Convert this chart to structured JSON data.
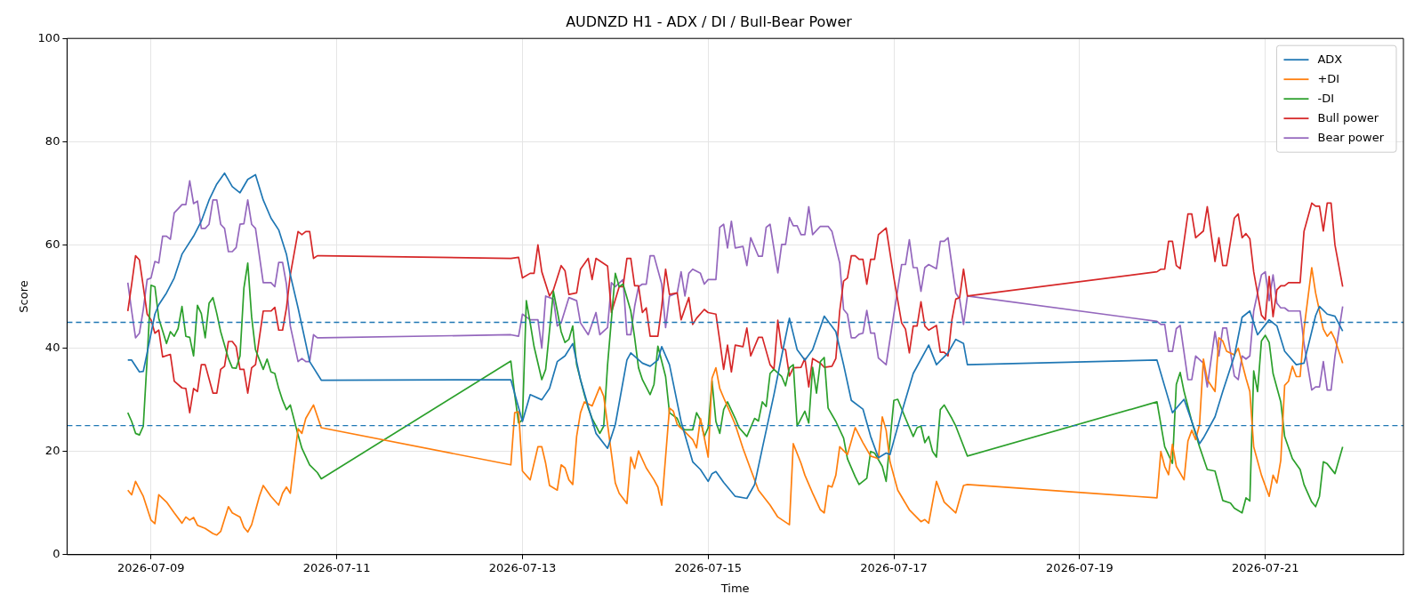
{
  "chart_data": {
    "type": "line",
    "title": "AUDNZD H1 - ADX / DI / Bull-Bear Power",
    "xlabel": "Time",
    "ylabel": "Score",
    "xlim": [
      "2026-07-08T02:18",
      "2026-07-22T11:42"
    ],
    "xticks": [
      "2026-07-09",
      "2026-07-11",
      "2026-07-13",
      "2026-07-15",
      "2026-07-17",
      "2026-07-19",
      "2026-07-21"
    ],
    "ylim": [
      0,
      100
    ],
    "yticks": [
      0,
      20,
      40,
      60,
      80,
      100
    ],
    "grid": true,
    "legend": "top right",
    "line_style": "solid",
    "ref_lines": [
      {
        "axis": "y",
        "value": 45,
        "color": "#1f77b4",
        "line_style": "dashed"
      },
      {
        "axis": "y",
        "value": 25,
        "color": "#1f77b4",
        "line_style": "dashed"
      }
    ],
    "series": [
      {
        "name": "ADX",
        "color": "#1f77b4",
        "x": [
          "2026-07-08T18:00",
          "2026-07-08T19:00",
          "2026-07-08T21:00",
          "2026-07-08T22:00",
          "2026-07-08T23:00",
          "2026-07-09T01:00",
          "2026-07-09T02:00",
          "2026-07-09T04:00",
          "2026-07-09T06:00",
          "2026-07-09T08:00",
          "2026-07-09T11:00",
          "2026-07-09T13:00",
          "2026-07-09T15:00",
          "2026-07-09T17:00",
          "2026-07-09T19:00",
          "2026-07-09T21:00",
          "2026-07-09T23:00",
          "2026-07-10T01:00",
          "2026-07-10T03:00",
          "2026-07-10T05:00",
          "2026-07-10T07:00",
          "2026-07-10T09:00",
          "2026-07-10T11:00",
          "2026-07-10T12:00",
          "2026-07-10T14:00",
          "2026-07-10T16:00",
          "2026-07-10T17:00",
          "2026-07-10T20:00",
          "2026-07-12T21:00",
          "2026-07-13T00:00",
          "2026-07-13T02:00",
          "2026-07-13T05:00",
          "2026-07-13T07:00",
          "2026-07-13T09:00",
          "2026-07-13T11:00",
          "2026-07-13T13:00",
          "2026-07-13T15:00",
          "2026-07-13T19:00",
          "2026-07-13T22:00",
          "2026-07-14T00:00",
          "2026-07-14T03:00",
          "2026-07-14T04:00",
          "2026-07-14T07:00",
          "2026-07-14T09:00",
          "2026-07-14T11:00",
          "2026-07-14T12:00",
          "2026-07-14T14:00",
          "2026-07-14T17:00",
          "2026-07-14T20:00",
          "2026-07-14T22:00",
          "2026-07-15T00:00",
          "2026-07-15T01:00",
          "2026-07-15T02:00",
          "2026-07-15T04:00",
          "2026-07-15T07:00",
          "2026-07-15T10:00",
          "2026-07-15T12:00",
          "2026-07-15T14:00",
          "2026-07-15T17:00",
          "2026-07-15T19:00",
          "2026-07-15T21:00",
          "2026-07-15T23:00",
          "2026-07-16T01:00",
          "2026-07-16T03:00",
          "2026-07-16T06:00",
          "2026-07-16T09:00",
          "2026-07-16T11:00",
          "2026-07-16T13:00",
          "2026-07-16T16:00",
          "2026-07-16T18:00",
          "2026-07-16T20:00",
          "2026-07-16T22:00",
          "2026-07-16T23:00",
          "2026-07-17T02:00",
          "2026-07-17T05:00",
          "2026-07-17T09:00",
          "2026-07-17T11:00",
          "2026-07-17T14:00",
          "2026-07-17T16:00",
          "2026-07-17T18:00",
          "2026-07-17T19:00",
          "2026-07-19T20:00",
          "2026-07-20T00:00",
          "2026-07-20T03:00",
          "2026-07-20T07:00",
          "2026-07-20T08:00",
          "2026-07-20T11:00",
          "2026-07-20T13:00",
          "2026-07-20T16:00",
          "2026-07-20T18:00",
          "2026-07-20T20:00",
          "2026-07-20T22:00",
          "2026-07-21T01:00",
          "2026-07-21T03:00",
          "2026-07-21T05:00",
          "2026-07-21T08:00",
          "2026-07-21T10:00",
          "2026-07-21T13:00",
          "2026-07-21T14:00",
          "2026-07-21T16:00",
          "2026-07-21T18:00",
          "2026-07-21T20:00"
        ],
        "values": [
          37.7,
          37.7,
          35.4,
          35.5,
          39.1,
          46.6,
          48.4,
          50.7,
          53.6,
          58.2,
          61.7,
          64.6,
          68.7,
          71.8,
          73.9,
          71.3,
          70.1,
          72.7,
          73.6,
          68.7,
          65.2,
          62.9,
          58.2,
          54.2,
          47.8,
          40.9,
          37.4,
          33.8,
          33.9,
          25.8,
          31.0,
          30.0,
          32.2,
          37.4,
          38.5,
          40.9,
          33.9,
          23.5,
          20.6,
          25.2,
          37.7,
          39.1,
          37.1,
          36.5,
          37.7,
          40.3,
          36.8,
          25.8,
          18.0,
          16.5,
          14.2,
          15.7,
          16.1,
          14.0,
          11.3,
          10.9,
          13.6,
          20.6,
          31.0,
          38.5,
          45.8,
          39.7,
          37.7,
          39.7,
          46.2,
          43.2,
          36.8,
          29.9,
          28.2,
          22.9,
          18.8,
          19.7,
          19.4,
          27.5,
          35.1,
          40.6,
          36.8,
          39.1,
          41.7,
          40.9,
          36.8,
          37.7,
          27.5,
          30.1,
          21.5,
          22.6,
          26.7,
          31.6,
          38.5,
          46.0,
          47.2,
          42.6,
          45.5,
          44.3,
          39.4,
          36.8,
          37.1,
          46.3,
          48.1,
          46.6,
          46.2,
          43.3
        ]
      },
      {
        "name": "+DI",
        "color": "#ff7f0e",
        "x": [
          "2026-07-08T18:00",
          "2026-07-08T19:00",
          "2026-07-08T20:00",
          "2026-07-08T22:00",
          "2026-07-09T00:00",
          "2026-07-09T01:00",
          "2026-07-09T02:00",
          "2026-07-09T04:00",
          "2026-07-09T06:00",
          "2026-07-09T08:00",
          "2026-07-09T09:00",
          "2026-07-09T10:00",
          "2026-07-09T11:00",
          "2026-07-09T12:00",
          "2026-07-09T14:00",
          "2026-07-09T16:00",
          "2026-07-09T17:00",
          "2026-07-09T18:00",
          "2026-07-09T20:00",
          "2026-07-09T21:00",
          "2026-07-09T23:00",
          "2026-07-10T00:00",
          "2026-07-10T01:00",
          "2026-07-10T02:00",
          "2026-07-10T04:00",
          "2026-07-10T05:00",
          "2026-07-10T07:00",
          "2026-07-10T09:00",
          "2026-07-10T10:00",
          "2026-07-10T11:00",
          "2026-07-10T12:00",
          "2026-07-10T14:00",
          "2026-07-10T15:00",
          "2026-07-10T16:00",
          "2026-07-10T18:00",
          "2026-07-10T20:00",
          "2026-07-12T21:00",
          "2026-07-12T22:00",
          "2026-07-12T23:00",
          "2026-07-13T00:00",
          "2026-07-13T02:00",
          "2026-07-13T04:00",
          "2026-07-13T05:00",
          "2026-07-13T06:00",
          "2026-07-13T07:00",
          "2026-07-13T09:00",
          "2026-07-13T10:00",
          "2026-07-13T11:00",
          "2026-07-13T12:00",
          "2026-07-13T13:00",
          "2026-07-13T14:00",
          "2026-07-13T15:00",
          "2026-07-13T16:00",
          "2026-07-13T18:00",
          "2026-07-13T20:00",
          "2026-07-13T21:00",
          "2026-07-13T22:00",
          "2026-07-14T00:00",
          "2026-07-14T01:00",
          "2026-07-14T03:00",
          "2026-07-14T04:00",
          "2026-07-14T05:00",
          "2026-07-14T06:00",
          "2026-07-14T08:00",
          "2026-07-14T10:00",
          "2026-07-14T11:00",
          "2026-07-14T12:00",
          "2026-07-14T14:00",
          "2026-07-14T15:00",
          "2026-07-14T16:00",
          "2026-07-14T18:00",
          "2026-07-14T20:00",
          "2026-07-14T21:00",
          "2026-07-14T22:00",
          "2026-07-15T00:00",
          "2026-07-15T01:00",
          "2026-07-15T02:00",
          "2026-07-15T03:00",
          "2026-07-15T04:00",
          "2026-07-15T05:00",
          "2026-07-15T07:00",
          "2026-07-15T09:00",
          "2026-07-15T11:00",
          "2026-07-15T13:00",
          "2026-07-15T16:00",
          "2026-07-15T18:00",
          "2026-07-15T21:00",
          "2026-07-15T22:00",
          "2026-07-16T00:00",
          "2026-07-16T01:00",
          "2026-07-16T03:00",
          "2026-07-16T05:00",
          "2026-07-16T06:00",
          "2026-07-16T07:00",
          "2026-07-16T08:00",
          "2026-07-16T09:00",
          "2026-07-16T10:00",
          "2026-07-16T12:00",
          "2026-07-16T14:00",
          "2026-07-16T16:00",
          "2026-07-16T18:00",
          "2026-07-16T20:00",
          "2026-07-16T21:00",
          "2026-07-16T22:00",
          "2026-07-16T23:00",
          "2026-07-17T01:00",
          "2026-07-17T04:00",
          "2026-07-17T07:00",
          "2026-07-17T08:00",
          "2026-07-17T09:00",
          "2026-07-17T11:00",
          "2026-07-17T13:00",
          "2026-07-17T16:00",
          "2026-07-17T18:00",
          "2026-07-17T19:00",
          "2026-07-19T20:00",
          "2026-07-19T21:00",
          "2026-07-19T22:00",
          "2026-07-19T23:00",
          "2026-07-20T00:00",
          "2026-07-20T01:00",
          "2026-07-20T03:00",
          "2026-07-20T04:00",
          "2026-07-20T05:00",
          "2026-07-20T06:00",
          "2026-07-20T07:00",
          "2026-07-20T08:00",
          "2026-07-20T09:00",
          "2026-07-20T11:00",
          "2026-07-20T12:00",
          "2026-07-20T13:00",
          "2026-07-20T14:00",
          "2026-07-20T16:00",
          "2026-07-20T17:00",
          "2026-07-20T19:00",
          "2026-07-20T20:00",
          "2026-07-20T21:00",
          "2026-07-20T23:00",
          "2026-07-21T01:00",
          "2026-07-21T02:00",
          "2026-07-21T03:00",
          "2026-07-21T04:00",
          "2026-07-21T05:00",
          "2026-07-21T06:00",
          "2026-07-21T07:00",
          "2026-07-21T08:00",
          "2026-07-21T09:00",
          "2026-07-21T10:00",
          "2026-07-21T12:00",
          "2026-07-21T13:00",
          "2026-07-21T15:00",
          "2026-07-21T16:00",
          "2026-07-21T17:00",
          "2026-07-21T18:00",
          "2026-07-21T20:00"
        ],
        "values": [
          12.5,
          11.6,
          14.2,
          11.3,
          6.7,
          6.0,
          11.6,
          10.2,
          8.1,
          6.1,
          7.3,
          6.7,
          7.2,
          5.7,
          5.1,
          4.1,
          3.8,
          4.5,
          9.3,
          8.1,
          7.3,
          5.3,
          4.4,
          5.8,
          11.3,
          13.4,
          11.3,
          9.6,
          11.9,
          13.1,
          11.9,
          24.4,
          23.5,
          26.4,
          29.0,
          24.6,
          17.4,
          27.5,
          27.7,
          16.2,
          14.5,
          20.9,
          20.9,
          17.7,
          13.4,
          12.5,
          17.4,
          16.8,
          14.5,
          13.6,
          22.9,
          27.5,
          29.6,
          28.8,
          32.5,
          30.7,
          25.2,
          13.9,
          11.9,
          9.9,
          18.9,
          16.7,
          20.1,
          16.8,
          14.5,
          13.1,
          9.6,
          28.4,
          27.8,
          25.2,
          23.8,
          22.3,
          20.7,
          26.4,
          18.9,
          34.2,
          36.2,
          32.2,
          30.4,
          28.7,
          25.2,
          20.6,
          16.5,
          12.5,
          9.6,
          7.3,
          5.8,
          21.5,
          17.7,
          15.4,
          11.9,
          8.7,
          8.1,
          13.4,
          13.1,
          15.4,
          20.9,
          19.4,
          24.6,
          21.7,
          19.1,
          18.6,
          26.7,
          24.1,
          18.0,
          12.5,
          8.7,
          6.4,
          6.8,
          6.1,
          14.2,
          10.2,
          8.1,
          13.4,
          13.6,
          11.0,
          20.0,
          17.1,
          15.5,
          21.4,
          17.1,
          14.5,
          22.0,
          24.1,
          22.3,
          25.2,
          37.9,
          33.9,
          31.6,
          42.0,
          41.4,
          39.4,
          38.7,
          40.0,
          34.2,
          31.6,
          20.9,
          15.4,
          11.3,
          15.4,
          13.9,
          18.3,
          32.8,
          33.6,
          36.5,
          34.5,
          34.5,
          43.7,
          55.6,
          50.7,
          43.7,
          42.3,
          43.2,
          41.7,
          37.1
        ]
      },
      {
        "name": "-DI",
        "color": "#2ca02c",
        "x": [
          "2026-07-08T18:00",
          "2026-07-08T19:00",
          "2026-07-08T20:00",
          "2026-07-08T21:00",
          "2026-07-08T22:00",
          "2026-07-08T23:00",
          "2026-07-09T00:00",
          "2026-07-09T01:00",
          "2026-07-09T02:00",
          "2026-07-09T04:00",
          "2026-07-09T05:00",
          "2026-07-09T06:00",
          "2026-07-09T07:00",
          "2026-07-09T08:00",
          "2026-07-09T09:00",
          "2026-07-09T10:00",
          "2026-07-09T11:00",
          "2026-07-09T12:00",
          "2026-07-09T13:00",
          "2026-07-09T14:00",
          "2026-07-09T15:00",
          "2026-07-09T16:00",
          "2026-07-09T17:00",
          "2026-07-09T18:00",
          "2026-07-09T20:00",
          "2026-07-09T21:00",
          "2026-07-09T22:00",
          "2026-07-09T23:00",
          "2026-07-10T00:00",
          "2026-07-10T01:00",
          "2026-07-10T02:00",
          "2026-07-10T03:00",
          "2026-07-10T05:00",
          "2026-07-10T06:00",
          "2026-07-10T07:00",
          "2026-07-10T08:00",
          "2026-07-10T09:00",
          "2026-07-10T10:00",
          "2026-07-10T11:00",
          "2026-07-10T12:00",
          "2026-07-10T14:00",
          "2026-07-10T15:00",
          "2026-07-10T17:00",
          "2026-07-10T19:00",
          "2026-07-10T20:00",
          "2026-07-12T21:00",
          "2026-07-12T22:00",
          "2026-07-12T23:00",
          "2026-07-13T00:00",
          "2026-07-13T01:00",
          "2026-07-13T02:00",
          "2026-07-13T03:00",
          "2026-07-13T05:00",
          "2026-07-13T06:00",
          "2026-07-13T08:00",
          "2026-07-13T09:00",
          "2026-07-13T10:00",
          "2026-07-13T11:00",
          "2026-07-13T12:00",
          "2026-07-13T13:00",
          "2026-07-13T14:00",
          "2026-07-13T16:00",
          "2026-07-13T17:00",
          "2026-07-13T18:00",
          "2026-07-13T20:00",
          "2026-07-13T21:00",
          "2026-07-13T22:00",
          "2026-07-14T00:00",
          "2026-07-14T01:00",
          "2026-07-14T02:00",
          "2026-07-14T04:00",
          "2026-07-14T05:00",
          "2026-07-14T06:00",
          "2026-07-14T07:00",
          "2026-07-14T09:00",
          "2026-07-14T10:00",
          "2026-07-14T11:00",
          "2026-07-14T13:00",
          "2026-07-14T14:00",
          "2026-07-14T16:00",
          "2026-07-14T17:00",
          "2026-07-14T18:00",
          "2026-07-14T20:00",
          "2026-07-14T21:00",
          "2026-07-14T22:00",
          "2026-07-14T23:00",
          "2026-07-15T00:00",
          "2026-07-15T01:00",
          "2026-07-15T02:00",
          "2026-07-15T03:00",
          "2026-07-15T04:00",
          "2026-07-15T05:00",
          "2026-07-15T07:00",
          "2026-07-15T08:00",
          "2026-07-15T10:00",
          "2026-07-15T12:00",
          "2026-07-15T13:00",
          "2026-07-15T14:00",
          "2026-07-15T15:00",
          "2026-07-15T16:00",
          "2026-07-15T17:00",
          "2026-07-15T19:00",
          "2026-07-15T20:00",
          "2026-07-15T21:00",
          "2026-07-15T22:00",
          "2026-07-15T23:00",
          "2026-07-16T01:00",
          "2026-07-16T02:00",
          "2026-07-16T03:00",
          "2026-07-16T04:00",
          "2026-07-16T05:00",
          "2026-07-16T06:00",
          "2026-07-16T07:00",
          "2026-07-16T09:00",
          "2026-07-16T11:00",
          "2026-07-16T12:00",
          "2026-07-16T14:00",
          "2026-07-16T15:00",
          "2026-07-16T17:00",
          "2026-07-16T18:00",
          "2026-07-16T19:00",
          "2026-07-16T21:00",
          "2026-07-16T22:00",
          "2026-07-17T00:00",
          "2026-07-17T01:00",
          "2026-07-17T03:00",
          "2026-07-17T05:00",
          "2026-07-17T06:00",
          "2026-07-17T07:00",
          "2026-07-17T08:00",
          "2026-07-17T09:00",
          "2026-07-17T10:00",
          "2026-07-17T11:00",
          "2026-07-17T12:00",
          "2026-07-17T13:00",
          "2026-07-17T15:00",
          "2026-07-17T16:00",
          "2026-07-17T19:00",
          "2026-07-19T20:00",
          "2026-07-19T22:00",
          "2026-07-20T00:00",
          "2026-07-20T01:00",
          "2026-07-20T02:00",
          "2026-07-20T03:00",
          "2026-07-20T05:00",
          "2026-07-20T07:00",
          "2026-07-20T09:00",
          "2026-07-20T11:00",
          "2026-07-20T13:00",
          "2026-07-20T15:00",
          "2026-07-20T16:00",
          "2026-07-20T18:00",
          "2026-07-20T19:00",
          "2026-07-20T20:00",
          "2026-07-20T21:00",
          "2026-07-20T22:00",
          "2026-07-20T23:00",
          "2026-07-21T00:00",
          "2026-07-21T01:00",
          "2026-07-21T02:00",
          "2026-07-21T04:00",
          "2026-07-21T05:00",
          "2026-07-21T07:00",
          "2026-07-21T09:00",
          "2026-07-21T10:00",
          "2026-07-21T12:00",
          "2026-07-21T13:00",
          "2026-07-21T14:00",
          "2026-07-21T15:00",
          "2026-07-21T16:00",
          "2026-07-21T18:00",
          "2026-07-21T20:00"
        ],
        "values": [
          27.5,
          25.8,
          23.5,
          23.2,
          24.9,
          38.0,
          52.2,
          51.9,
          45.8,
          40.9,
          43.2,
          42.3,
          43.8,
          48.1,
          42.3,
          42.1,
          38.5,
          48.3,
          46.7,
          42.0,
          48.7,
          49.8,
          46.7,
          43.2,
          38.0,
          36.2,
          36.1,
          38.5,
          51.6,
          56.5,
          46.1,
          39.7,
          35.9,
          37.9,
          35.4,
          35.1,
          32.2,
          29.9,
          28.1,
          29.0,
          23.2,
          20.6,
          17.4,
          15.9,
          14.7,
          37.5,
          31.0,
          25.5,
          26.1,
          49.2,
          44.9,
          40.3,
          33.9,
          35.9,
          51.0,
          47.2,
          43.2,
          41.1,
          41.7,
          44.3,
          36.8,
          31.0,
          28.4,
          26.4,
          23.5,
          24.9,
          36.8,
          54.5,
          51.9,
          52.4,
          47.2,
          42.0,
          36.2,
          33.9,
          31.0,
          33.0,
          40.4,
          34.5,
          27.5,
          26.4,
          24.6,
          24.2,
          24.2,
          27.5,
          26.1,
          22.9,
          24.6,
          33.6,
          25.8,
          23.5,
          28.1,
          29.6,
          26.4,
          24.6,
          22.9,
          26.4,
          25.9,
          29.6,
          28.7,
          35.1,
          35.9,
          34.5,
          32.7,
          36.2,
          36.8,
          24.9,
          27.8,
          25.5,
          36.3,
          31.3,
          37.4,
          38.2,
          28.4,
          25.8,
          22.6,
          18.6,
          15.1,
          13.6,
          14.8,
          20.0,
          19.7,
          17.1,
          14.2,
          29.9,
          30.1,
          26.4,
          22.9,
          24.6,
          24.9,
          21.7,
          22.9,
          20.0,
          18.9,
          28.1,
          29.0,
          26.4,
          24.9,
          19.1,
          29.6,
          20.9,
          17.7,
          33.0,
          35.3,
          31.6,
          25.8,
          20.9,
          16.5,
          16.2,
          10.5,
          10.0,
          9.0,
          8.1,
          11.0,
          10.4,
          35.6,
          31.6,
          41.4,
          42.5,
          41.1,
          35.1,
          29.6,
          22.9,
          18.6,
          16.5,
          13.6,
          10.2,
          9.3,
          11.3,
          18.0,
          17.6,
          15.7,
          20.9
        ]
      },
      {
        "name": "Bull power",
        "color": "#d62728",
        "x": [
          "2026-07-08T18:00",
          "2026-07-08T19:00",
          "2026-07-08T20:00",
          "2026-07-08T21:00",
          "2026-07-08T22:00",
          "2026-07-08T23:00",
          "2026-07-09T00:00",
          "2026-07-09T01:00",
          "2026-07-09T02:00",
          "2026-07-09T03:00",
          "2026-07-09T05:00",
          "2026-07-09T06:00",
          "2026-07-09T08:00",
          "2026-07-09T09:00",
          "2026-07-09T10:00",
          "2026-07-09T11:00",
          "2026-07-09T12:00",
          "2026-07-09T13:00",
          "2026-07-09T14:00",
          "2026-07-09T16:00",
          "2026-07-09T17:00",
          "2026-07-09T18:00",
          "2026-07-09T19:00",
          "2026-07-09T20:00",
          "2026-07-09T21:00",
          "2026-07-09T22:00",
          "2026-07-09T23:00",
          "2026-07-10T00:00",
          "2026-07-10T01:00",
          "2026-07-10T02:00",
          "2026-07-10T03:00",
          "2026-07-10T05:00",
          "2026-07-10T06:00",
          "2026-07-10T07:00",
          "2026-07-10T08:00",
          "2026-07-10T09:00",
          "2026-07-10T10:00",
          "2026-07-10T11:00",
          "2026-07-10T12:00",
          "2026-07-10T14:00",
          "2026-07-10T15:00",
          "2026-07-10T16:00",
          "2026-07-10T17:00",
          "2026-07-10T18:00",
          "2026-07-10T19:00",
          "2026-07-10T20:00",
          "2026-07-12T21:00",
          "2026-07-12T23:00",
          "2026-07-13T00:00",
          "2026-07-13T02:00",
          "2026-07-13T03:00",
          "2026-07-13T04:00",
          "2026-07-13T05:00",
          "2026-07-13T07:00",
          "2026-07-13T08:00",
          "2026-07-13T10:00",
          "2026-07-13T11:00",
          "2026-07-13T12:00",
          "2026-07-13T14:00",
          "2026-07-13T15:00",
          "2026-07-13T17:00",
          "2026-07-13T18:00",
          "2026-07-13T19:00",
          "2026-07-13T22:00",
          "2026-07-13T23:00",
          "2026-07-14T01:00",
          "2026-07-14T02:00",
          "2026-07-14T03:00",
          "2026-07-14T04:00",
          "2026-07-14T05:00",
          "2026-07-14T06:00",
          "2026-07-14T07:00",
          "2026-07-14T08:00",
          "2026-07-14T09:00",
          "2026-07-14T11:00",
          "2026-07-14T12:00",
          "2026-07-14T13:00",
          "2026-07-14T14:00",
          "2026-07-14T16:00",
          "2026-07-14T17:00",
          "2026-07-14T19:00",
          "2026-07-14T20:00",
          "2026-07-14T21:00",
          "2026-07-14T23:00",
          "2026-07-15T00:00",
          "2026-07-15T02:00",
          "2026-07-15T03:00",
          "2026-07-15T04:00",
          "2026-07-15T05:00",
          "2026-07-15T06:00",
          "2026-07-15T07:00",
          "2026-07-15T09:00",
          "2026-07-15T10:00",
          "2026-07-15T11:00",
          "2026-07-15T13:00",
          "2026-07-15T14:00",
          "2026-07-15T16:00",
          "2026-07-15T17:00",
          "2026-07-15T18:00",
          "2026-07-15T19:00",
          "2026-07-15T20:00",
          "2026-07-15T21:00",
          "2026-07-15T22:00",
          "2026-07-16T00:00",
          "2026-07-16T01:00",
          "2026-07-16T02:00",
          "2026-07-16T03:00",
          "2026-07-16T05:00",
          "2026-07-16T06:00",
          "2026-07-16T08:00",
          "2026-07-16T09:00",
          "2026-07-16T10:00",
          "2026-07-16T11:00",
          "2026-07-16T12:00",
          "2026-07-16T13:00",
          "2026-07-16T14:00",
          "2026-07-16T15:00",
          "2026-07-16T16:00",
          "2026-07-16T17:00",
          "2026-07-16T18:00",
          "2026-07-16T19:00",
          "2026-07-16T20:00",
          "2026-07-16T22:00",
          "2026-07-17T00:00",
          "2026-07-17T02:00",
          "2026-07-17T03:00",
          "2026-07-17T04:00",
          "2026-07-17T05:00",
          "2026-07-17T06:00",
          "2026-07-17T07:00",
          "2026-07-17T08:00",
          "2026-07-17T09:00",
          "2026-07-17T11:00",
          "2026-07-17T12:00",
          "2026-07-17T13:00",
          "2026-07-17T14:00",
          "2026-07-17T15:00",
          "2026-07-17T16:00",
          "2026-07-17T17:00",
          "2026-07-17T18:00",
          "2026-07-17T19:00",
          "2026-07-19T20:00",
          "2026-07-19T21:00",
          "2026-07-19T22:00",
          "2026-07-19T23:00",
          "2026-07-20T00:00",
          "2026-07-20T01:00",
          "2026-07-20T02:00",
          "2026-07-20T04:00",
          "2026-07-20T05:00",
          "2026-07-20T06:00",
          "2026-07-20T08:00",
          "2026-07-20T09:00",
          "2026-07-20T11:00",
          "2026-07-20T12:00",
          "2026-07-20T13:00",
          "2026-07-20T14:00",
          "2026-07-20T16:00",
          "2026-07-20T17:00",
          "2026-07-20T18:00",
          "2026-07-20T19:00",
          "2026-07-20T20:00",
          "2026-07-20T21:00",
          "2026-07-20T23:00",
          "2026-07-21T00:00",
          "2026-07-21T01:00",
          "2026-07-21T02:00",
          "2026-07-21T03:00",
          "2026-07-21T04:00",
          "2026-07-21T05:00",
          "2026-07-21T06:00",
          "2026-07-21T09:00",
          "2026-07-21T10:00",
          "2026-07-21T12:00",
          "2026-07-21T13:00",
          "2026-07-21T14:00",
          "2026-07-21T15:00",
          "2026-07-21T16:00",
          "2026-07-21T17:00",
          "2026-07-21T18:00",
          "2026-07-21T20:00"
        ],
        "values": [
          47.2,
          52.4,
          57.9,
          57.1,
          51.9,
          46.6,
          45.5,
          42.9,
          43.5,
          38.3,
          38.8,
          33.6,
          32.3,
          32.2,
          27.5,
          32.2,
          31.6,
          36.8,
          36.8,
          31.3,
          31.3,
          35.9,
          36.5,
          41.3,
          41.3,
          40.3,
          35.9,
          35.9,
          31.3,
          36.2,
          36.8,
          47.2,
          47.2,
          47.2,
          47.9,
          43.5,
          43.5,
          47.8,
          54.2,
          62.6,
          62.0,
          62.6,
          62.6,
          57.4,
          57.9,
          57.9,
          57.4,
          57.6,
          53.6,
          54.5,
          54.5,
          60.0,
          54.8,
          50.1,
          51.3,
          56.0,
          55.0,
          50.4,
          50.7,
          55.3,
          57.4,
          53.3,
          57.4,
          55.9,
          46.9,
          51.9,
          51.9,
          57.4,
          57.4,
          52.1,
          52.1,
          46.9,
          47.8,
          42.3,
          42.3,
          48.1,
          55.3,
          50.4,
          50.7,
          45.5,
          49.8,
          44.6,
          45.8,
          47.5,
          46.9,
          46.6,
          41.4,
          35.9,
          40.6,
          35.4,
          40.6,
          40.3,
          43.9,
          38.5,
          42.1,
          42.1,
          36.8,
          35.9,
          45.4,
          40.0,
          39.7,
          34.6,
          36.2,
          36.3,
          38.0,
          32.5,
          38.0,
          37.1,
          36.3,
          36.5,
          38.0,
          47.2,
          53.0,
          53.6,
          57.9,
          57.9,
          57.2,
          57.2,
          52.4,
          57.2,
          57.2,
          62.0,
          63.3,
          53.6,
          44.9,
          43.7,
          39.1,
          44.3,
          44.3,
          49.0,
          44.3,
          43.5,
          44.4,
          39.2,
          39.2,
          38.5,
          45.5,
          49.5,
          49.8,
          55.3,
          50.1,
          54.8,
          55.3,
          55.3,
          60.7,
          60.7,
          56.0,
          55.4,
          66.0,
          66.0,
          61.4,
          62.7,
          67.4,
          56.8,
          61.4,
          56.0,
          56.0,
          65.2,
          66.0,
          61.4,
          62.2,
          61.2,
          54.8,
          46.4,
          45.5,
          53.9,
          46.1,
          51.3,
          52.1,
          52.1,
          52.7,
          52.7,
          62.6,
          68.1,
          67.5,
          67.5,
          62.7,
          68.1,
          68.1,
          60.0,
          51.9
        ]
      },
      {
        "name": "Bear power",
        "color": "#9467bd",
        "x": [
          "2026-07-08T18:00",
          "2026-07-08T19:00",
          "2026-07-08T20:00",
          "2026-07-08T21:00",
          "2026-07-08T22:00",
          "2026-07-08T23:00",
          "2026-07-09T00:00",
          "2026-07-09T01:00",
          "2026-07-09T02:00",
          "2026-07-09T03:00",
          "2026-07-09T04:00",
          "2026-07-09T05:00",
          "2026-07-09T06:00",
          "2026-07-09T07:00",
          "2026-07-09T08:00",
          "2026-07-09T09:00",
          "2026-07-09T10:00",
          "2026-07-09T11:00",
          "2026-07-09T12:00",
          "2026-07-09T13:00",
          "2026-07-09T14:00",
          "2026-07-09T15:00",
          "2026-07-09T16:00",
          "2026-07-09T17:00",
          "2026-07-09T18:00",
          "2026-07-09T19:00",
          "2026-07-09T20:00",
          "2026-07-09T21:00",
          "2026-07-09T22:00",
          "2026-07-09T23:00",
          "2026-07-10T00:00",
          "2026-07-10T01:00",
          "2026-07-10T02:00",
          "2026-07-10T03:00",
          "2026-07-10T05:00",
          "2026-07-10T06:00",
          "2026-07-10T07:00",
          "2026-07-10T08:00",
          "2026-07-10T09:00",
          "2026-07-10T10:00",
          "2026-07-10T11:00",
          "2026-07-10T12:00",
          "2026-07-10T14:00",
          "2026-07-10T15:00",
          "2026-07-10T16:00",
          "2026-07-10T17:00",
          "2026-07-10T18:00",
          "2026-07-10T19:00",
          "2026-07-10T20:00",
          "2026-07-12T21:00",
          "2026-07-12T23:00",
          "2026-07-13T00:00",
          "2026-07-13T02:00",
          "2026-07-13T04:00",
          "2026-07-13T05:00",
          "2026-07-13T06:00",
          "2026-07-13T08:00",
          "2026-07-13T09:00",
          "2026-07-13T10:00",
          "2026-07-13T12:00",
          "2026-07-13T14:00",
          "2026-07-13T15:00",
          "2026-07-13T17:00",
          "2026-07-13T19:00",
          "2026-07-13T20:00",
          "2026-07-13T22:00",
          "2026-07-13T23:00",
          "2026-07-14T00:00",
          "2026-07-14T02:00",
          "2026-07-14T03:00",
          "2026-07-14T04:00",
          "2026-07-14T05:00",
          "2026-07-14T06:00",
          "2026-07-14T07:00",
          "2026-07-14T08:00",
          "2026-07-14T09:00",
          "2026-07-14T10:00",
          "2026-07-14T12:00",
          "2026-07-14T13:00",
          "2026-07-14T14:00",
          "2026-07-14T16:00",
          "2026-07-14T17:00",
          "2026-07-14T18:00",
          "2026-07-14T19:00",
          "2026-07-14T20:00",
          "2026-07-14T22:00",
          "2026-07-14T23:00",
          "2026-07-15T00:00",
          "2026-07-15T02:00",
          "2026-07-15T03:00",
          "2026-07-15T04:00",
          "2026-07-15T05:00",
          "2026-07-15T06:00",
          "2026-07-15T07:00",
          "2026-07-15T09:00",
          "2026-07-15T10:00",
          "2026-07-15T11:00",
          "2026-07-15T13:00",
          "2026-07-15T14:00",
          "2026-07-15T15:00",
          "2026-07-15T16:00",
          "2026-07-15T18:00",
          "2026-07-15T19:00",
          "2026-07-15T20:00",
          "2026-07-15T21:00",
          "2026-07-15T22:00",
          "2026-07-15T23:00",
          "2026-07-16T00:00",
          "2026-07-16T01:00",
          "2026-07-16T02:00",
          "2026-07-16T03:00",
          "2026-07-16T05:00",
          "2026-07-16T07:00",
          "2026-07-16T08:00",
          "2026-07-16T10:00",
          "2026-07-16T11:00",
          "2026-07-16T12:00",
          "2026-07-16T13:00",
          "2026-07-16T14:00",
          "2026-07-16T15:00",
          "2026-07-16T16:00",
          "2026-07-16T17:00",
          "2026-07-16T18:00",
          "2026-07-16T19:00",
          "2026-07-16T20:00",
          "2026-07-16T22:00",
          "2026-07-17T00:00",
          "2026-07-17T02:00",
          "2026-07-17T03:00",
          "2026-07-17T04:00",
          "2026-07-17T05:00",
          "2026-07-17T06:00",
          "2026-07-17T07:00",
          "2026-07-17T08:00",
          "2026-07-17T09:00",
          "2026-07-17T11:00",
          "2026-07-17T12:00",
          "2026-07-17T13:00",
          "2026-07-17T14:00",
          "2026-07-17T16:00",
          "2026-07-17T17:00",
          "2026-07-17T18:00",
          "2026-07-17T19:00",
          "2026-07-19T20:00",
          "2026-07-19T21:00",
          "2026-07-19T22:00",
          "2026-07-19T23:00",
          "2026-07-20T00:00",
          "2026-07-20T01:00",
          "2026-07-20T02:00",
          "2026-07-20T04:00",
          "2026-07-20T05:00",
          "2026-07-20T06:00",
          "2026-07-20T08:00",
          "2026-07-20T09:00",
          "2026-07-20T11:00",
          "2026-07-20T12:00",
          "2026-07-20T13:00",
          "2026-07-20T14:00",
          "2026-07-20T16:00",
          "2026-07-20T17:00",
          "2026-07-20T18:00",
          "2026-07-20T19:00",
          "2026-07-20T20:00",
          "2026-07-20T21:00",
          "2026-07-20T23:00",
          "2026-07-21T00:00",
          "2026-07-21T01:00",
          "2026-07-21T02:00",
          "2026-07-21T03:00",
          "2026-07-21T04:00",
          "2026-07-21T05:00",
          "2026-07-21T06:00",
          "2026-07-21T09:00",
          "2026-07-21T10:00",
          "2026-07-21T12:00",
          "2026-07-21T13:00",
          "2026-07-21T14:00",
          "2026-07-21T15:00",
          "2026-07-21T16:00",
          "2026-07-21T17:00",
          "2026-07-21T18:00",
          "2026-07-21T20:00"
        ],
        "values": [
          52.7,
          47.2,
          42.0,
          42.9,
          47.5,
          53.3,
          53.6,
          56.8,
          56.5,
          61.7,
          61.7,
          61.1,
          66.2,
          67.0,
          67.8,
          67.8,
          72.4,
          68.0,
          68.5,
          63.2,
          63.2,
          64.0,
          68.7,
          68.7,
          64.0,
          63.2,
          58.7,
          58.7,
          59.5,
          64.0,
          64.1,
          68.7,
          64.0,
          63.2,
          52.7,
          52.7,
          52.7,
          51.9,
          56.6,
          56.6,
          52.4,
          44.3,
          37.4,
          38.0,
          37.4,
          37.4,
          42.6,
          42.0,
          42.0,
          42.6,
          42.3,
          46.6,
          45.5,
          45.5,
          40.0,
          50.1,
          49.5,
          44.3,
          44.9,
          49.8,
          49.2,
          44.9,
          42.6,
          46.9,
          42.6,
          44.0,
          52.7,
          51.9,
          53.3,
          42.6,
          42.6,
          48.1,
          51.9,
          52.4,
          52.4,
          57.9,
          57.9,
          52.4,
          44.0,
          50.1,
          50.7,
          54.8,
          50.1,
          54.5,
          55.3,
          54.5,
          52.4,
          53.3,
          53.3,
          63.4,
          64.0,
          59.4,
          64.6,
          59.4,
          59.7,
          56.0,
          61.4,
          57.8,
          57.8,
          63.4,
          64.0,
          54.6,
          60.1,
          60.1,
          65.3,
          63.7,
          63.7,
          62.0,
          62.0,
          67.4,
          62.0,
          63.6,
          63.6,
          62.6,
          56.5,
          47.5,
          46.6,
          42.0,
          42.0,
          42.7,
          42.9,
          47.3,
          42.9,
          42.9,
          38.1,
          36.8,
          46.6,
          56.2,
          56.2,
          61.0,
          55.6,
          55.6,
          51.0,
          55.6,
          56.2,
          55.4,
          60.7,
          60.7,
          61.4,
          50.7,
          49.5,
          44.6,
          50.1,
          45.2,
          44.6,
          44.6,
          39.4,
          39.4,
          43.8,
          44.4,
          33.9,
          33.9,
          38.5,
          37.1,
          32.5,
          43.2,
          38.5,
          43.9,
          43.9,
          34.6,
          33.9,
          38.5,
          37.9,
          38.5,
          47.2,
          54.2,
          54.8,
          49.2,
          54.2,
          48.7,
          47.8,
          47.8,
          47.2,
          47.2,
          40.9,
          31.9,
          32.5,
          32.5,
          37.4,
          31.9,
          31.9,
          38.5,
          48.1
        ]
      }
    ]
  }
}
